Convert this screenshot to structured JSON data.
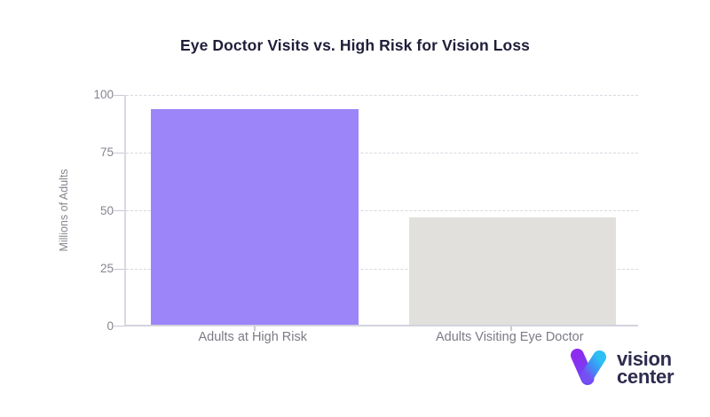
{
  "chart_data": {
    "type": "bar",
    "title": "Eye Doctor Visits vs. High Risk for Vision Loss",
    "categories": [
      "Adults at High Risk",
      "Adults Visiting Eye Doctor"
    ],
    "values": [
      93,
      46.5
    ],
    "xlabel": "",
    "ylabel": "Millions of Adults",
    "ylim": [
      0,
      100
    ],
    "yticks": [
      0,
      25,
      50,
      75,
      100
    ],
    "bar_colors": [
      "#9c85f8",
      "#e1e0dd"
    ],
    "grid": "horizontal-dashed",
    "legend_position": "none"
  },
  "branding": {
    "logo_line1": "vision",
    "logo_line2": "center"
  },
  "colors": {
    "background": "#ffffff",
    "title_text": "#1f1e3a",
    "axis_tick_text": "#85858f",
    "category_text": "#7b7b86",
    "axis_line": "#d9d9e3",
    "grid_line": "#d8d8e2",
    "bar_high_risk": "#9c85f8",
    "bar_visiting_doctor": "#e1e0dd",
    "logo_text": "#2e2c4e",
    "logo_purple": "#8d2bef",
    "logo_blue": "#2cc0f4"
  }
}
